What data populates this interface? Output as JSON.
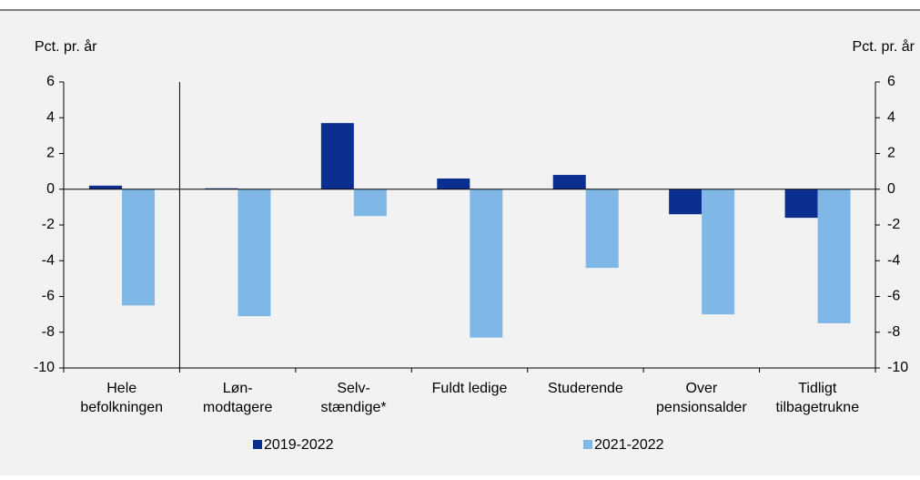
{
  "chart_data": {
    "type": "bar",
    "ylabel": "Pct. pr. år",
    "y2label": "Pct. pr. år",
    "categories": [
      [
        "Hele",
        "befolkningen"
      ],
      [
        "Løn-",
        "modtagere"
      ],
      [
        "Selv-",
        "stændige*"
      ],
      [
        "Fuldt ledige"
      ],
      [
        "Studerende"
      ],
      [
        "Over",
        "pensionsalder"
      ],
      [
        "Tidligt",
        "tilbagetrukne"
      ]
    ],
    "series": [
      {
        "name": "2019-2022",
        "color": "#0b2f91",
        "values": [
          0.2,
          0.05,
          3.7,
          0.6,
          0.8,
          -1.4,
          -1.6
        ]
      },
      {
        "name": "2021-2022",
        "color": "#7fb8e6",
        "values": [
          -6.5,
          -7.1,
          -1.5,
          -8.3,
          -4.4,
          -7.0,
          -7.5
        ]
      }
    ],
    "ylim": [
      -10,
      6
    ],
    "yticks": [
      -10,
      -8,
      -6,
      -4,
      -2,
      0,
      2,
      4,
      6
    ],
    "y2lim": [
      -10,
      6
    ],
    "y2ticks": [
      -10,
      -8,
      -6,
      -4,
      -2,
      0,
      2,
      4,
      6
    ],
    "grid": false
  }
}
